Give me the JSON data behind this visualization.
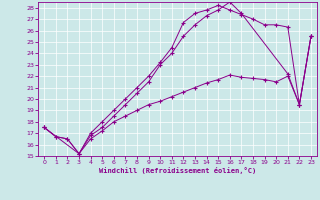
{
  "xlabel": "Windchill (Refroidissement éolien,°C)",
  "bg_color": "#cce8e8",
  "line_color": "#8b008b",
  "xlim": [
    -0.5,
    23.5
  ],
  "ylim": [
    15,
    28.5
  ],
  "xticks": [
    0,
    1,
    2,
    3,
    4,
    5,
    6,
    7,
    8,
    9,
    10,
    11,
    12,
    13,
    14,
    15,
    16,
    17,
    18,
    19,
    20,
    21,
    22,
    23
  ],
  "yticks": [
    15,
    16,
    17,
    18,
    19,
    20,
    21,
    22,
    23,
    24,
    25,
    26,
    27,
    28
  ],
  "curve1_x": [
    0,
    1,
    2,
    3,
    4,
    5,
    6,
    7,
    8,
    9,
    10,
    11,
    12,
    13,
    14,
    15,
    16,
    17,
    18,
    19,
    20,
    21,
    22,
    23
  ],
  "curve1_y": [
    17.5,
    16.7,
    16.5,
    15.2,
    16.5,
    17.2,
    18.0,
    18.5,
    19.0,
    19.5,
    19.8,
    20.2,
    20.6,
    21.0,
    21.4,
    21.7,
    22.1,
    21.9,
    21.8,
    21.7,
    21.5,
    22.0,
    19.5,
    25.5
  ],
  "curve2_x": [
    0,
    1,
    2,
    3,
    4,
    5,
    6,
    7,
    8,
    9,
    10,
    11,
    12,
    13,
    14,
    15,
    16,
    17,
    18,
    19,
    20,
    21,
    22,
    23
  ],
  "curve2_y": [
    17.5,
    16.7,
    16.5,
    15.2,
    17.0,
    18.0,
    19.0,
    20.0,
    21.0,
    22.0,
    23.2,
    24.5,
    26.7,
    27.5,
    27.8,
    28.2,
    27.8,
    27.4,
    27.0,
    26.5,
    26.5,
    26.3,
    19.5,
    25.5
  ],
  "curve3_x": [
    0,
    3,
    4,
    5,
    6,
    7,
    8,
    9,
    10,
    11,
    12,
    13,
    14,
    15,
    16,
    17,
    21,
    22,
    23
  ],
  "curve3_y": [
    17.5,
    15.2,
    16.8,
    17.5,
    18.5,
    19.5,
    20.5,
    21.5,
    23.0,
    24.0,
    25.5,
    26.5,
    27.3,
    27.8,
    28.5,
    27.5,
    22.2,
    19.5,
    25.5
  ]
}
